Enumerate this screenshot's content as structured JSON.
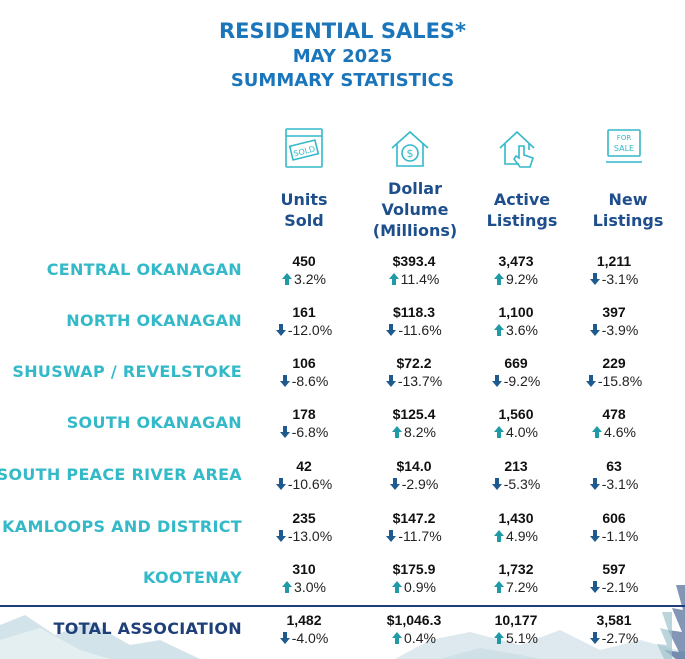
{
  "title": {
    "line1": "RESIDENTIAL SALES*",
    "line2": "MAY 2025",
    "line3": "SUMMARY STATISTICS"
  },
  "columns": [
    {
      "line1": "Units",
      "line2": "Sold",
      "line3": "",
      "icon": "sold-sign-icon"
    },
    {
      "line1": "Dollar",
      "line2": "Volume",
      "line3": "(Millions)",
      "icon": "house-dollar-icon"
    },
    {
      "line1": "Active",
      "line2": "Listings",
      "line3": "",
      "icon": "house-pointer-icon"
    },
    {
      "line1": "New",
      "line2": "Listings",
      "line3": "",
      "icon": "for-sale-sign-icon"
    }
  ],
  "colors": {
    "up": "#1f9aa6",
    "down": "#1e5a8e",
    "title": "#1a75bb",
    "region": "#33b9c8",
    "total": "#1e3f78"
  },
  "rows": [
    {
      "name": "CENTRAL OKANAGAN",
      "cells": [
        {
          "value": "450",
          "change": "3.2%",
          "dir": "up"
        },
        {
          "value": "$393.4",
          "change": "11.4%",
          "dir": "up"
        },
        {
          "value": "3,473",
          "change": "9.2%",
          "dir": "up"
        },
        {
          "value": "1,211",
          "change": "-3.1%",
          "dir": "down"
        }
      ]
    },
    {
      "name": "NORTH OKANAGAN",
      "cells": [
        {
          "value": "161",
          "change": "-12.0%",
          "dir": "down"
        },
        {
          "value": "$118.3",
          "change": "-11.6%",
          "dir": "down"
        },
        {
          "value": "1,100",
          "change": "3.6%",
          "dir": "up"
        },
        {
          "value": "397",
          "change": "-3.9%",
          "dir": "down"
        }
      ]
    },
    {
      "name": "SHUSWAP / REVELSTOKE",
      "cells": [
        {
          "value": "106",
          "change": "-8.6%",
          "dir": "down"
        },
        {
          "value": "$72.2",
          "change": "-13.7%",
          "dir": "down"
        },
        {
          "value": "669",
          "change": "-9.2%",
          "dir": "down"
        },
        {
          "value": "229",
          "change": "-15.8%",
          "dir": "down"
        }
      ]
    },
    {
      "name": "SOUTH OKANAGAN",
      "cells": [
        {
          "value": "178",
          "change": "-6.8%",
          "dir": "down"
        },
        {
          "value": "$125.4",
          "change": "8.2%",
          "dir": "up"
        },
        {
          "value": "1,560",
          "change": "4.0%",
          "dir": "up"
        },
        {
          "value": "478",
          "change": "4.6%",
          "dir": "up"
        }
      ]
    },
    {
      "name": "SOUTH PEACE RIVER AREA",
      "cells": [
        {
          "value": "42",
          "change": "-10.6%",
          "dir": "down"
        },
        {
          "value": "$14.0",
          "change": "-2.9%",
          "dir": "down"
        },
        {
          "value": "213",
          "change": "-5.3%",
          "dir": "down"
        },
        {
          "value": "63",
          "change": "-3.1%",
          "dir": "down"
        }
      ]
    },
    {
      "name": "KAMLOOPS AND DISTRICT",
      "cells": [
        {
          "value": "235",
          "change": "-13.0%",
          "dir": "down"
        },
        {
          "value": "$147.2",
          "change": "-11.7%",
          "dir": "down"
        },
        {
          "value": "1,430",
          "change": "4.9%",
          "dir": "up"
        },
        {
          "value": "606",
          "change": "-1.1%",
          "dir": "down"
        }
      ]
    },
    {
      "name": "KOOTENAY",
      "cells": [
        {
          "value": "310",
          "change": "3.0%",
          "dir": "up"
        },
        {
          "value": "$175.9",
          "change": "0.9%",
          "dir": "up"
        },
        {
          "value": "1,732",
          "change": "7.2%",
          "dir": "up"
        },
        {
          "value": "597",
          "change": "-2.1%",
          "dir": "down"
        }
      ]
    }
  ],
  "total": {
    "name": "TOTAL ASSOCIATION",
    "cells": [
      {
        "value": "1,482",
        "change": "-4.0%",
        "dir": "down"
      },
      {
        "value": "$1,046.3",
        "change": "0.4%",
        "dir": "up"
      },
      {
        "value": "10,177",
        "change": "5.1%",
        "dir": "up"
      },
      {
        "value": "3,581",
        "change": "-2.7%",
        "dir": "down"
      }
    ]
  }
}
